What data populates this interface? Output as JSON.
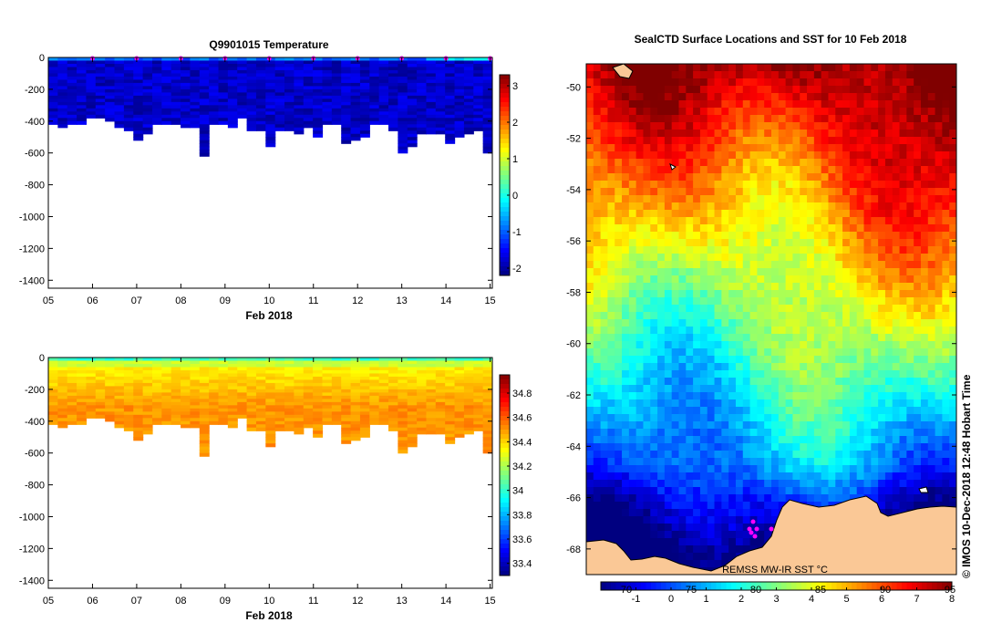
{
  "chart_data": [
    {
      "type": "heatmap",
      "id": "temperature-section",
      "title": "Q9901015  Temperature",
      "xlabel": "Feb 2018",
      "x_ticks": [
        "05",
        "06",
        "07",
        "08",
        "09",
        "10",
        "11",
        "12",
        "13",
        "14",
        "15"
      ],
      "y_ticks": [
        "0",
        "-200",
        "-400",
        "-600",
        "-800",
        "-1000",
        "-1200",
        "-1400"
      ],
      "ylim": [
        -1450,
        0
      ],
      "xlim": [
        5,
        15.05
      ],
      "colorbar": {
        "ticks": [
          "3",
          "2",
          "1",
          "0",
          "-1",
          "-2"
        ],
        "min": -2.2,
        "max": 3.3
      },
      "profile_depths": [
        -420,
        -440,
        -420,
        -410,
        -380,
        -380,
        -400,
        -440,
        -460,
        -510,
        -480,
        -420,
        -420,
        -420,
        -440,
        -430,
        -620,
        -410,
        -420,
        -430,
        -380,
        -450,
        -450,
        -560,
        -450,
        -460,
        -480,
        -430,
        -500,
        -420,
        -420,
        -530,
        -520,
        -500,
        -420,
        -420,
        -460,
        -590,
        -560,
        -480,
        -480,
        -480,
        -540,
        -500,
        -470,
        -460,
        -600
      ],
      "profile_markers": [
        6,
        7,
        8,
        9,
        10,
        11,
        12,
        13,
        14,
        15
      ]
    },
    {
      "type": "heatmap",
      "id": "salinity-section",
      "title": "",
      "xlabel": "Feb 2018",
      "x_ticks": [
        "05",
        "06",
        "07",
        "08",
        "09",
        "10",
        "11",
        "12",
        "13",
        "14",
        "15"
      ],
      "y_ticks": [
        "0",
        "-200",
        "-400",
        "-600",
        "-800",
        "-1000",
        "-1200",
        "-1400"
      ],
      "ylim": [
        -1450,
        0
      ],
      "xlim": [
        5,
        15.05
      ],
      "colorbar": {
        "ticks": [
          "34.8",
          "34.6",
          "34.4",
          "34.2",
          "34",
          "33.8",
          "33.6",
          "33.4"
        ],
        "min": 33.3,
        "max": 34.95
      },
      "profile_depths": [
        -420,
        -440,
        -420,
        -410,
        -380,
        -380,
        -400,
        -440,
        -460,
        -510,
        -480,
        -420,
        -420,
        -420,
        -440,
        -430,
        -620,
        -410,
        -420,
        -430,
        -380,
        -450,
        -450,
        -560,
        -450,
        -460,
        -480,
        -430,
        -500,
        -420,
        -420,
        -530,
        -520,
        -500,
        -420,
        -420,
        -460,
        -590,
        -560,
        -480,
        -480,
        -480,
        -540,
        -500,
        -470,
        -460,
        -600
      ]
    },
    {
      "type": "heatmap",
      "id": "sst-map",
      "title": "SealCTD Surface Locations and SST for 10 Feb 2018",
      "lat_ticks": [
        "-50",
        "-52",
        "-54",
        "-56",
        "-58",
        "-60",
        "-62",
        "-64",
        "-66",
        "-68"
      ],
      "lat_range": [
        -69,
        -49.1
      ],
      "colorbar_ticks": [
        "-1",
        "0",
        "1",
        "2",
        "3",
        "4",
        "5",
        "6",
        "7",
        "8"
      ],
      "colorbar_overlay_ticks": [
        "70",
        "75",
        "80",
        "85",
        "90",
        "95"
      ],
      "colorbar_range": [
        -2,
        8
      ],
      "source_label": "REMSS MW-IR SST °C",
      "side_label": "©  IMOS 10-Dec-2018 12:48 Hobart Time"
    }
  ]
}
